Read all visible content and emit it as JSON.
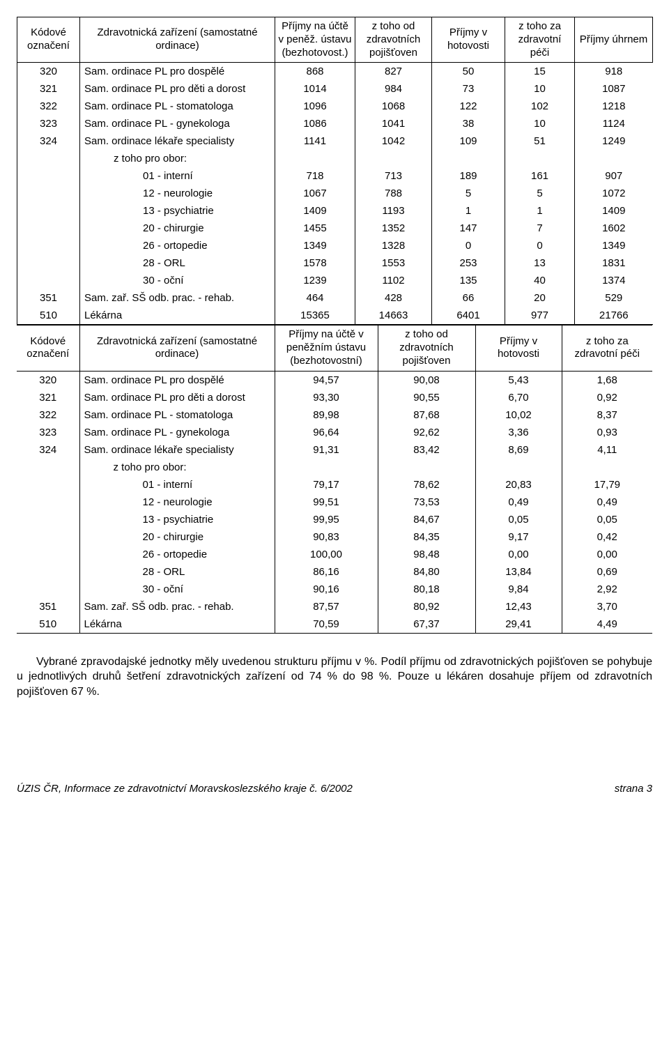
{
  "table1": {
    "headers": [
      "Kódové označení",
      "Zdravotnická zařízení (samostatné ordinace)",
      "Příjmy na účtě v peněž. ústavu (bezhotovost.)",
      "z toho od zdravotních pojišťoven",
      "Příjmy v hotovosti",
      "z toho za zdravotní péči",
      "Příjmy úhrnem"
    ],
    "rows": [
      {
        "code": "320",
        "label": "Sam. ordinace PL pro dospělé",
        "indent": 0,
        "vals": [
          "868",
          "827",
          "50",
          "15",
          "918"
        ]
      },
      {
        "code": "321",
        "label": "Sam. ordinace PL pro děti a dorost",
        "indent": 0,
        "vals": [
          "1014",
          "984",
          "73",
          "10",
          "1087"
        ]
      },
      {
        "code": "322",
        "label": "Sam. ordinace PL - stomatologa",
        "indent": 0,
        "vals": [
          "1096",
          "1068",
          "122",
          "102",
          "1218"
        ]
      },
      {
        "code": "323",
        "label": "Sam. ordinace PL - gynekologa",
        "indent": 0,
        "vals": [
          "1086",
          "1041",
          "38",
          "10",
          "1124"
        ]
      },
      {
        "code": "324",
        "label": "Sam. ordinace lékaře specialisty",
        "indent": 0,
        "vals": [
          "1141",
          "1042",
          "109",
          "51",
          "1249"
        ]
      },
      {
        "code": "",
        "label": "z toho pro obor:",
        "indent": 1,
        "vals": [
          "",
          "",
          "",
          "",
          ""
        ]
      },
      {
        "code": "",
        "label": "01 - interní",
        "indent": 2,
        "vals": [
          "718",
          "713",
          "189",
          "161",
          "907"
        ]
      },
      {
        "code": "",
        "label": "12 - neurologie",
        "indent": 2,
        "vals": [
          "1067",
          "788",
          "5",
          "5",
          "1072"
        ]
      },
      {
        "code": "",
        "label": "13 - psychiatrie",
        "indent": 2,
        "vals": [
          "1409",
          "1193",
          "1",
          "1",
          "1409"
        ]
      },
      {
        "code": "",
        "label": "20 - chirurgie",
        "indent": 2,
        "vals": [
          "1455",
          "1352",
          "147",
          "7",
          "1602"
        ]
      },
      {
        "code": "",
        "label": "26 - ortopedie",
        "indent": 2,
        "vals": [
          "1349",
          "1328",
          "0",
          "0",
          "1349"
        ]
      },
      {
        "code": "",
        "label": "28 - ORL",
        "indent": 2,
        "vals": [
          "1578",
          "1553",
          "253",
          "13",
          "1831"
        ]
      },
      {
        "code": "",
        "label": "30 - oční",
        "indent": 2,
        "vals": [
          "1239",
          "1102",
          "135",
          "40",
          "1374"
        ]
      },
      {
        "code": "351",
        "label": "Sam. zař. SŠ odb. prac. - rehab.",
        "indent": 0,
        "vals": [
          "464",
          "428",
          "66",
          "20",
          "529"
        ]
      },
      {
        "code": "510",
        "label": "Lékárna",
        "indent": 0,
        "vals": [
          "15365",
          "14663",
          "6401",
          "977",
          "21766"
        ]
      }
    ]
  },
  "table2": {
    "headers": [
      "Kódové označení",
      "Zdravotnická zařízení (samostatné ordinace)",
      "Příjmy na účtě v peněžním ústavu (bezhotovostní)",
      "z toho od zdravotních pojišťoven",
      "Příjmy v hotovosti",
      "z toho za zdravotní péči"
    ],
    "rows": [
      {
        "code": "320",
        "label": "Sam. ordinace PL pro dospělé",
        "indent": 0,
        "vals": [
          "94,57",
          "90,08",
          "5,43",
          "1,68"
        ]
      },
      {
        "code": "321",
        "label": "Sam. ordinace PL pro děti a dorost",
        "indent": 0,
        "vals": [
          "93,30",
          "90,55",
          "6,70",
          "0,92"
        ]
      },
      {
        "code": "322",
        "label": "Sam. ordinace PL - stomatologa",
        "indent": 0,
        "vals": [
          "89,98",
          "87,68",
          "10,02",
          "8,37"
        ]
      },
      {
        "code": "323",
        "label": "Sam. ordinace PL - gynekologa",
        "indent": 0,
        "vals": [
          "96,64",
          "92,62",
          "3,36",
          "0,93"
        ]
      },
      {
        "code": "324",
        "label": "Sam. ordinace lékaře specialisty",
        "indent": 0,
        "vals": [
          "91,31",
          "83,42",
          "8,69",
          "4,11"
        ]
      },
      {
        "code": "",
        "label": "z toho pro obor:",
        "indent": 1,
        "vals": [
          "",
          "",
          "",
          ""
        ]
      },
      {
        "code": "",
        "label": "01 - interní",
        "indent": 2,
        "vals": [
          "79,17",
          "78,62",
          "20,83",
          "17,79"
        ]
      },
      {
        "code": "",
        "label": "12 - neurologie",
        "indent": 2,
        "vals": [
          "99,51",
          "73,53",
          "0,49",
          "0,49"
        ]
      },
      {
        "code": "",
        "label": "13 - psychiatrie",
        "indent": 2,
        "vals": [
          "99,95",
          "84,67",
          "0,05",
          "0,05"
        ]
      },
      {
        "code": "",
        "label": "20 - chirurgie",
        "indent": 2,
        "vals": [
          "90,83",
          "84,35",
          "9,17",
          "0,42"
        ]
      },
      {
        "code": "",
        "label": "26 - ortopedie",
        "indent": 2,
        "vals": [
          "100,00",
          "98,48",
          "0,00",
          "0,00"
        ]
      },
      {
        "code": "",
        "label": "28 - ORL",
        "indent": 2,
        "vals": [
          "86,16",
          "84,80",
          "13,84",
          "0,69"
        ]
      },
      {
        "code": "",
        "label": "30 - oční",
        "indent": 2,
        "vals": [
          "90,16",
          "80,18",
          "9,84",
          "2,92"
        ]
      },
      {
        "code": "351",
        "label": "Sam. zař. SŠ odb. prac. - rehab.",
        "indent": 0,
        "vals": [
          "87,57",
          "80,92",
          "12,43",
          "3,70"
        ]
      },
      {
        "code": "510",
        "label": "Lékárna",
        "indent": 0,
        "vals": [
          "70,59",
          "67,37",
          "29,41",
          "4,49"
        ]
      }
    ]
  },
  "paragraph": "Vybrané zpravodajské jednotky měly uvedenou strukturu příjmu v %. Podíl příjmu od zdravotnických pojišťoven se pohybuje u jednotlivých druhů šetření zdravotnických zařízení od 74 % do 98 %. Pouze u lékáren dosahuje příjem od zdravotních pojišťoven 67 %.",
  "footer_left": "ÚZIS ČR, Informace ze zdravotnictví Moravskoslezského kraje č. 6/2002",
  "footer_right": "strana 3"
}
